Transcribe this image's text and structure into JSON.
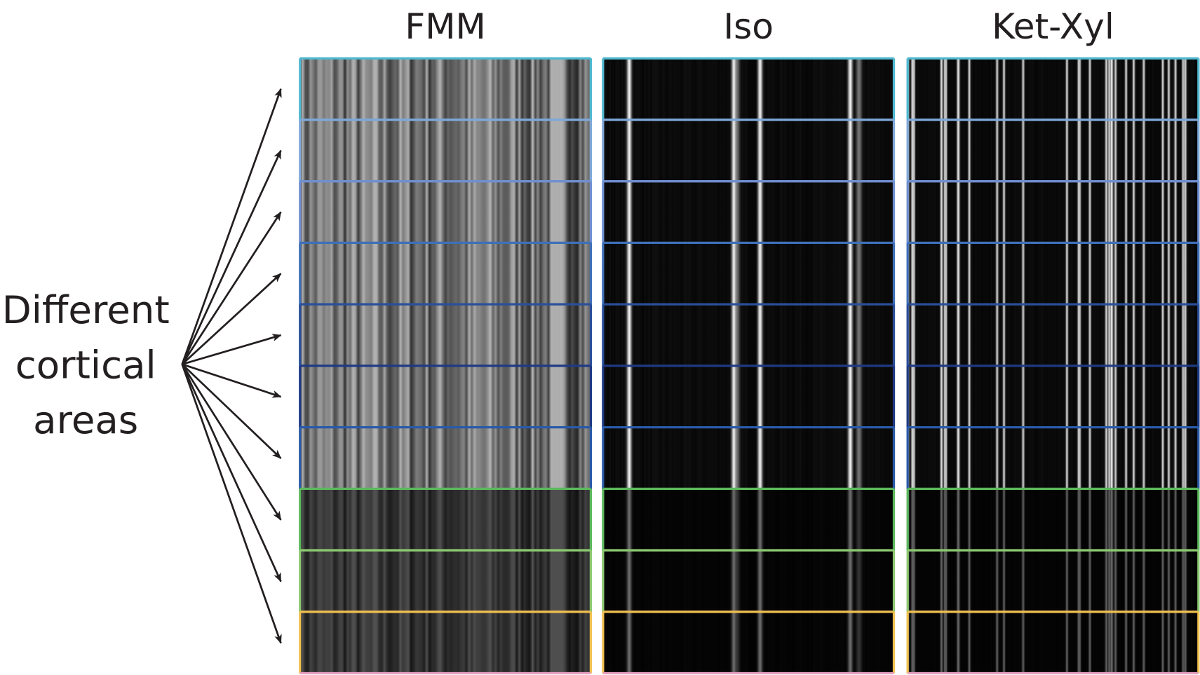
{
  "panels": [
    {
      "title": "FMM"
    },
    {
      "title": "Iso"
    },
    {
      "title": "Ket-Xyl"
    }
  ],
  "side_label": [
    "Different",
    "cortical",
    "areas"
  ]
}
